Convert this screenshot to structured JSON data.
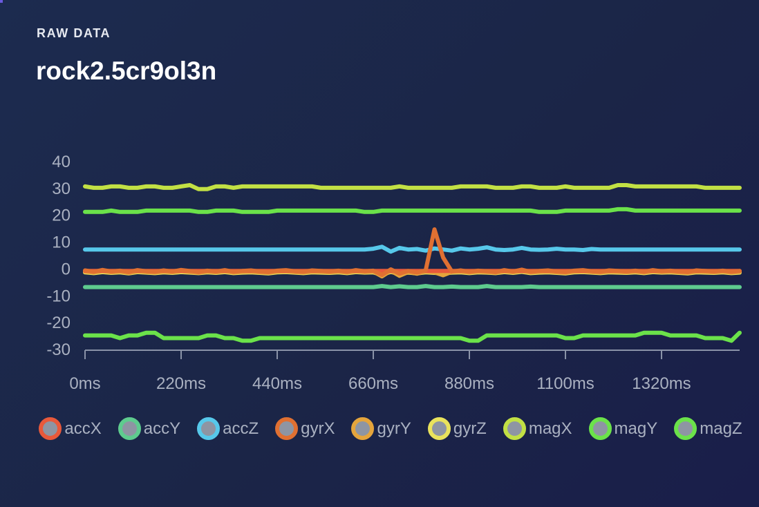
{
  "header": {
    "subtitle": "RAW DATA",
    "title": "rock2.5cr9ol3n"
  },
  "colors": {
    "background": "#1b2547",
    "axis": "#8a93a8",
    "tick_text": "#aab1c1",
    "legend_fill": "#8e95a3"
  },
  "chart_data": {
    "type": "line",
    "xlabel": "",
    "ylabel": "",
    "xlim": [
      0,
      1500
    ],
    "ylim": [
      -30,
      40
    ],
    "grid": false,
    "legend_position": "bottom",
    "y_ticks": [
      "40",
      "30",
      "20",
      "10",
      "0",
      "-10",
      "-20",
      "-30"
    ],
    "x_ticks": [
      "0ms",
      "220ms",
      "440ms",
      "660ms",
      "880ms",
      "1100ms",
      "1320ms"
    ],
    "x_tick_values": [
      0,
      220,
      440,
      660,
      880,
      1100,
      1320
    ],
    "x_step": 20,
    "series": [
      {
        "name": "accX",
        "color": "#e8593b",
        "values": [
          -1,
          -1,
          -1,
          -1,
          -1,
          -1,
          -1,
          -1,
          -1,
          -1,
          -1,
          -1,
          -1,
          -1,
          -1,
          -1,
          -1,
          -1,
          -1,
          -1,
          -1,
          -1,
          -1,
          -1,
          -1,
          -1,
          -1,
          -1,
          -1,
          -1,
          -1,
          -1,
          -1,
          -1,
          -1,
          -1,
          -1,
          -1,
          -1,
          -1,
          -1,
          -1,
          -1,
          -1,
          -1,
          -1,
          -1,
          -1,
          -1,
          -1,
          -1,
          -1,
          -1,
          -1,
          -1,
          -1,
          -1,
          -1,
          -1,
          -1,
          -1,
          -1,
          -1,
          -1,
          -1,
          -1,
          -1,
          -1,
          -1,
          -1,
          -1,
          -1,
          -1,
          -1,
          -1,
          -1
        ]
      },
      {
        "name": "accY",
        "color": "#5ecb8e",
        "values": [
          -7,
          -7,
          -7,
          -7,
          -7,
          -7,
          -7,
          -7,
          -7,
          -7,
          -7,
          -7,
          -7,
          -7,
          -7,
          -7,
          -7,
          -7,
          -7,
          -7,
          -7,
          -7,
          -7,
          -7,
          -7,
          -7,
          -7,
          -7,
          -7,
          -7,
          -7,
          -7,
          -7,
          -7,
          -6.6,
          -7,
          -6.7,
          -7,
          -7,
          -6.6,
          -7,
          -7,
          -6.8,
          -7,
          -7,
          -7,
          -6.6,
          -7,
          -7,
          -7,
          -7,
          -6.8,
          -7,
          -7,
          -7,
          -7,
          -7,
          -7,
          -7,
          -7,
          -7,
          -7,
          -7,
          -7,
          -7,
          -7,
          -7,
          -7,
          -7,
          -7,
          -7,
          -7,
          -7,
          -7,
          -7,
          -7
        ]
      },
      {
        "name": "accZ",
        "color": "#57c8ea",
        "values": [
          7,
          7,
          7,
          7,
          7,
          7,
          7,
          7,
          7,
          7,
          7,
          7,
          7,
          7,
          7,
          7,
          7,
          7,
          7,
          7,
          7,
          7,
          7,
          7,
          7,
          7,
          7,
          7,
          7,
          7,
          7,
          7,
          7,
          7.3,
          8.0,
          6.2,
          7.6,
          7.0,
          7.2,
          6.6,
          7.4,
          7.0,
          6.6,
          7.4,
          7.0,
          7.3,
          7.8,
          7.0,
          6.8,
          7.0,
          7.6,
          7.0,
          6.9,
          7.0,
          7.3,
          7.0,
          7.0,
          6.8,
          7.2,
          7.0,
          7.0,
          7.0,
          7.0,
          7.0,
          7.0,
          7.0,
          7.0,
          7.0,
          7.0,
          7.0,
          7.0,
          7.0,
          7.0,
          7.0,
          7.0,
          7.0
        ]
      },
      {
        "name": "gyrX",
        "color": "#e07032",
        "values": [
          -0.8,
          -1.3,
          -0.6,
          -1.2,
          -0.9,
          -1.4,
          -0.7,
          -1.1,
          -1.3,
          -0.8,
          -1.2,
          -0.6,
          -1.0,
          -1.4,
          -0.9,
          -1.2,
          -0.7,
          -1.3,
          -1.0,
          -0.8,
          -1.2,
          -1.4,
          -0.9,
          -0.7,
          -1.1,
          -1.3,
          -0.8,
          -1.0,
          -1.2,
          -0.9,
          -1.3,
          -0.7,
          -1.1,
          -0.9,
          -2.5,
          -0.4,
          -2.0,
          -1.0,
          -1.6,
          -0.8,
          14.5,
          4.0,
          -1.2,
          -0.8,
          -1.3,
          -0.9,
          -1.1,
          -1.4,
          -0.7,
          -1.2,
          -0.5,
          -1.3,
          -1.0,
          -0.8,
          -1.2,
          -1.4,
          -0.9,
          -0.7,
          -1.1,
          -1.3,
          -0.8,
          -1.0,
          -1.2,
          -0.9,
          -1.3,
          -0.7,
          -1.1,
          -0.9,
          -1.2,
          -1.4,
          -0.8,
          -1.0,
          -1.2,
          -0.9,
          -1.3,
          -1.0
        ]
      },
      {
        "name": "gyrY",
        "color": "#e5a53c",
        "values": [
          -1.2,
          -1.6,
          -1.0,
          -1.5,
          -1.2,
          -1.8,
          -1.1,
          -1.4,
          -1.6,
          -1.2,
          -1.5,
          -1.0,
          -1.4,
          -1.7,
          -1.2,
          -1.5,
          -1.1,
          -1.6,
          -1.3,
          -1.2,
          -1.5,
          -1.7,
          -1.2,
          -1.1,
          -1.4,
          -1.6,
          -1.2,
          -1.3,
          -1.5,
          -1.2,
          -1.6,
          -1.1,
          -1.4,
          -1.2,
          -3.0,
          -0.9,
          -2.8,
          -1.4,
          -2.0,
          -1.2,
          -1.5,
          -2.6,
          -1.3,
          -1.2,
          -1.6,
          -1.2,
          -1.4,
          -1.7,
          -1.1,
          -1.5,
          -1.0,
          -1.6,
          -1.3,
          -1.2,
          -1.5,
          -1.7,
          -1.2,
          -1.1,
          -1.4,
          -1.6,
          -1.2,
          -1.3,
          -1.5,
          -1.2,
          -1.6,
          -1.1,
          -1.4,
          -1.2,
          -1.5,
          -1.7,
          -1.2,
          -1.3,
          -1.5,
          -1.2,
          -1.6,
          -1.3
        ]
      },
      {
        "name": "gyrZ",
        "color": "#e9e25c",
        "values": [
          -1.5,
          -1.8,
          -1.4,
          -1.7,
          -1.5,
          -1.9,
          -1.4,
          -1.6,
          -1.8,
          -1.5,
          -1.7,
          -1.4,
          -1.6,
          -1.8,
          -1.5,
          -1.7,
          -1.4,
          -1.8,
          -1.6,
          -1.5,
          -1.7,
          -1.9,
          -1.5,
          -1.4,
          -1.6,
          -1.8,
          -1.5,
          -1.6,
          -1.7,
          -1.5,
          -1.8,
          -1.4,
          -1.6,
          -1.5,
          -2.4,
          -1.3,
          -2.2,
          -1.6,
          -1.9,
          -1.5,
          -1.7,
          -1.9,
          -1.6,
          -1.5,
          -1.8,
          -1.5,
          -1.6,
          -1.8,
          -1.4,
          -1.7,
          -1.3,
          -1.8,
          -1.6,
          -1.5,
          -1.7,
          -1.9,
          -1.5,
          -1.4,
          -1.6,
          -1.8,
          -1.5,
          -1.6,
          -1.7,
          -1.5,
          -1.8,
          -1.4,
          -1.6,
          -1.5,
          -1.7,
          -1.9,
          -1.5,
          -1.6,
          -1.7,
          -1.5,
          -1.8,
          -1.6
        ]
      },
      {
        "name": "magX",
        "color": "#c2e044",
        "values": [
          30.5,
          30.0,
          30.0,
          30.5,
          30.5,
          30.0,
          30.0,
          30.5,
          30.5,
          30.0,
          30.0,
          30.5,
          31.0,
          29.5,
          29.5,
          30.5,
          30.5,
          30.0,
          30.5,
          30.5,
          30.5,
          30.5,
          30.5,
          30.5,
          30.5,
          30.5,
          30.5,
          30.0,
          30.0,
          30.0,
          30.0,
          30.0,
          30.0,
          30.0,
          30.0,
          30.0,
          30.5,
          30.0,
          30.0,
          30.0,
          30.0,
          30.0,
          30.0,
          30.5,
          30.5,
          30.5,
          30.5,
          30.0,
          30.0,
          30.0,
          30.5,
          30.5,
          30.0,
          30.0,
          30.0,
          30.5,
          30.0,
          30.0,
          30.0,
          30.0,
          30.0,
          31.0,
          31.0,
          30.5,
          30.5,
          30.5,
          30.5,
          30.5,
          30.5,
          30.5,
          30.5,
          30.0,
          30.0,
          30.0,
          30.0,
          30.0
        ]
      },
      {
        "name": "magY",
        "color": "#6be24a",
        "values": [
          -25.0,
          -25.0,
          -25.0,
          -25.0,
          -26.0,
          -25.0,
          -25.0,
          -24.0,
          -24.0,
          -26.0,
          -26.0,
          -26.0,
          -26.0,
          -26.0,
          -25.0,
          -25.0,
          -26.0,
          -26.0,
          -27.0,
          -27.0,
          -26.0,
          -26.0,
          -26.0,
          -26.0,
          -26.0,
          -26.0,
          -26.0,
          -26.0,
          -26.0,
          -26.0,
          -26.0,
          -26.0,
          -26.0,
          -26.0,
          -26.0,
          -26.0,
          -26.0,
          -26.0,
          -26.0,
          -26.0,
          -26.0,
          -26.0,
          -26.0,
          -26.0,
          -27.0,
          -27.0,
          -25.0,
          -25.0,
          -25.0,
          -25.0,
          -25.0,
          -25.0,
          -25.0,
          -25.0,
          -25.0,
          -26.0,
          -26.0,
          -25.0,
          -25.0,
          -25.0,
          -25.0,
          -25.0,
          -25.0,
          -25.0,
          -24.0,
          -24.0,
          -24.0,
          -25.0,
          -25.0,
          -25.0,
          -25.0,
          -26.0,
          -26.0,
          -26.0,
          -27.0,
          -24.0
        ]
      },
      {
        "name": "magZ",
        "color": "#6be24a",
        "values": [
          21.0,
          21.0,
          21.0,
          21.5,
          21.0,
          21.0,
          21.0,
          21.5,
          21.5,
          21.5,
          21.5,
          21.5,
          21.5,
          21.0,
          21.0,
          21.5,
          21.5,
          21.5,
          21.0,
          21.0,
          21.0,
          21.0,
          21.5,
          21.5,
          21.5,
          21.5,
          21.5,
          21.5,
          21.5,
          21.5,
          21.5,
          21.5,
          21.0,
          21.0,
          21.5,
          21.5,
          21.5,
          21.5,
          21.5,
          21.5,
          21.5,
          21.5,
          21.5,
          21.5,
          21.5,
          21.5,
          21.5,
          21.5,
          21.5,
          21.5,
          21.5,
          21.5,
          21.0,
          21.0,
          21.0,
          21.5,
          21.5,
          21.5,
          21.5,
          21.5,
          21.5,
          22.0,
          22.0,
          21.5,
          21.5,
          21.5,
          21.5,
          21.5,
          21.5,
          21.5,
          21.5,
          21.5,
          21.5,
          21.5,
          21.5,
          21.5
        ]
      }
    ]
  }
}
